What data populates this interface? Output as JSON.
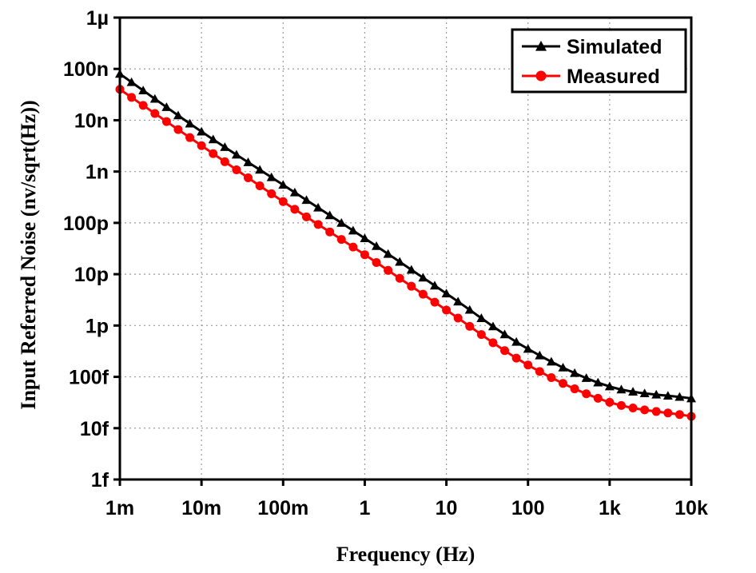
{
  "chart_data": {
    "type": "line",
    "title": "",
    "xlabel": "Frequency (Hz)",
    "ylabel": "Input Referred Noise (nv/sqrt(Hz))",
    "x_scale": "log",
    "y_scale": "log",
    "xlim": [
      0.001,
      10000
    ],
    "ylim": [
      1e-15,
      1e-06
    ],
    "grid": true,
    "legend_position": "top-right",
    "x_ticks": [
      {
        "value": 0.001,
        "label": "1m"
      },
      {
        "value": 0.01,
        "label": "10m"
      },
      {
        "value": 0.1,
        "label": "100m"
      },
      {
        "value": 1,
        "label": "1"
      },
      {
        "value": 10,
        "label": "10"
      },
      {
        "value": 100,
        "label": "100"
      },
      {
        "value": 1000,
        "label": "1k"
      },
      {
        "value": 10000,
        "label": "10k"
      }
    ],
    "y_ticks": [
      {
        "value": 1e-15,
        "label": "1f"
      },
      {
        "value": 1e-14,
        "label": "10f"
      },
      {
        "value": 1e-13,
        "label": "100f"
      },
      {
        "value": 1e-12,
        "label": "1p"
      },
      {
        "value": 1e-11,
        "label": "10p"
      },
      {
        "value": 1e-10,
        "label": "100p"
      },
      {
        "value": 1e-09,
        "label": "1n"
      },
      {
        "value": 1e-08,
        "label": "10n"
      },
      {
        "value": 1e-07,
        "label": "100n"
      },
      {
        "value": 1e-06,
        "label": "1µ"
      }
    ],
    "series": [
      {
        "name": "Simulated",
        "color": "#000000",
        "marker": "triangle",
        "x": [
          0.001,
          0.01,
          0.1,
          1,
          10,
          100,
          1000,
          10000
        ],
        "y": [
          8e-08,
          6e-09,
          5.5e-10,
          5e-11,
          4.2e-12,
          3.5e-13,
          6.5e-14,
          3.8e-14
        ]
      },
      {
        "name": "Measured",
        "color": "#ff0000",
        "marker": "circle",
        "x": [
          0.001,
          0.01,
          0.1,
          1,
          10,
          100,
          1000,
          10000
        ],
        "y": [
          4e-08,
          3.2e-09,
          2.6e-10,
          2.4e-11,
          2e-12,
          1.7e-13,
          3.2e-14,
          1.7e-14
        ]
      }
    ]
  }
}
